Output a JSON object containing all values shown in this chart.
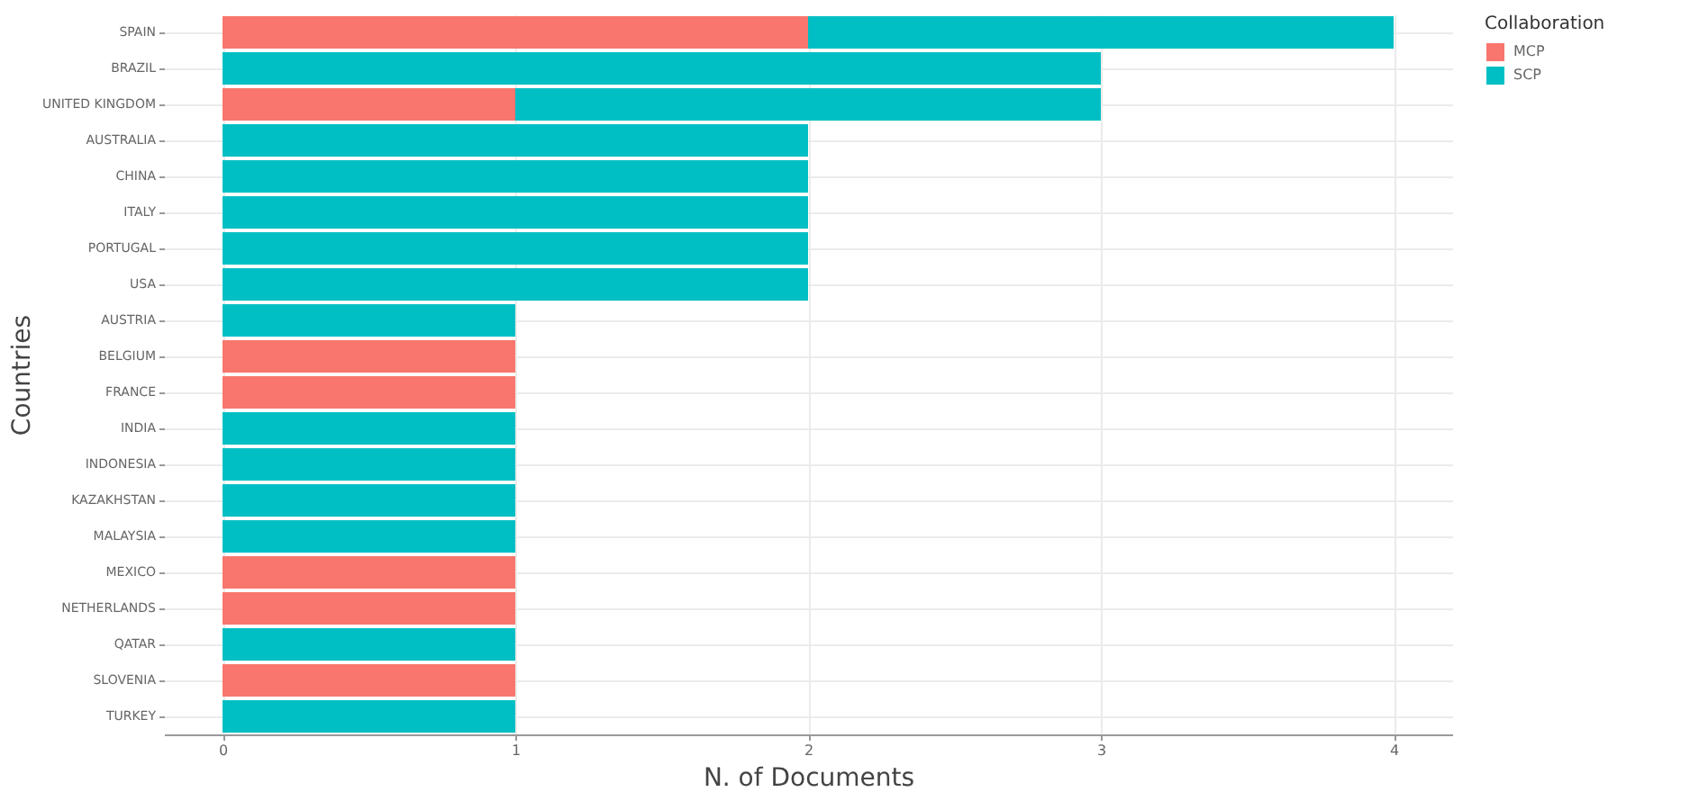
{
  "chart_data": {
    "type": "bar",
    "orientation": "horizontal",
    "stacked": true,
    "xlabel": "N. of Documents",
    "ylabel": "Countries",
    "legend_title": "Collaboration",
    "legend": "top right",
    "categories": [
      "SPAIN",
      "BRAZIL",
      "UNITED KINGDOM",
      "AUSTRALIA",
      "CHINA",
      "ITALY",
      "PORTUGAL",
      "USA",
      "AUSTRIA",
      "BELGIUM",
      "FRANCE",
      "INDIA",
      "INDONESIA",
      "KAZAKHSTAN",
      "MALAYSIA",
      "MEXICO",
      "NETHERLANDS",
      "QATAR",
      "SLOVENIA",
      "TURKEY"
    ],
    "series": [
      {
        "name": "MCP",
        "color": "#f8766d",
        "values": [
          2,
          0,
          1,
          0,
          0,
          0,
          0,
          0,
          0,
          1,
          1,
          0,
          0,
          0,
          0,
          1,
          1,
          0,
          1,
          0
        ]
      },
      {
        "name": "SCP",
        "color": "#00bfc4",
        "values": [
          2,
          3,
          2,
          2,
          2,
          2,
          2,
          2,
          1,
          0,
          0,
          1,
          1,
          1,
          1,
          0,
          0,
          1,
          0,
          1
        ]
      }
    ],
    "xlim": [
      -0.2,
      4.2
    ],
    "xticks": [
      0,
      1,
      2,
      3,
      4
    ],
    "grid": true
  }
}
